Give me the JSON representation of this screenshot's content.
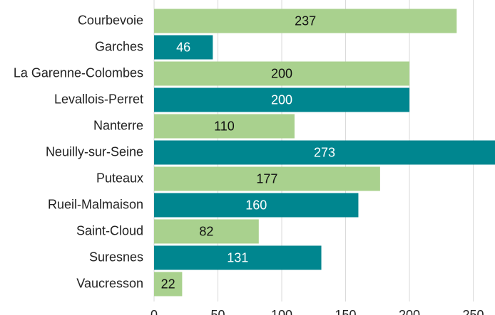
{
  "chart_data": {
    "type": "barh",
    "categories": [
      "Courbevoie",
      "Garches",
      "La Garenne-Colombes",
      "Levallois-Perret",
      "Nanterre",
      "Neuilly-sur-Seine",
      "Puteaux",
      "Rueil-Malmaison",
      "Saint-Cloud",
      "Suresnes",
      "Vaucresson"
    ],
    "values": [
      237,
      46,
      200,
      200,
      110,
      273,
      177,
      160,
      82,
      131,
      22
    ],
    "colors": [
      "#a9d18e",
      "#00868f",
      "#a9d18e",
      "#00868f",
      "#a9d18e",
      "#00868f",
      "#a9d18e",
      "#00868f",
      "#a9d18e",
      "#00868f",
      "#a9d18e"
    ],
    "xlim": [
      0,
      267
    ],
    "xticks": [
      0,
      50,
      100,
      150,
      200,
      250
    ],
    "grid": true
  }
}
